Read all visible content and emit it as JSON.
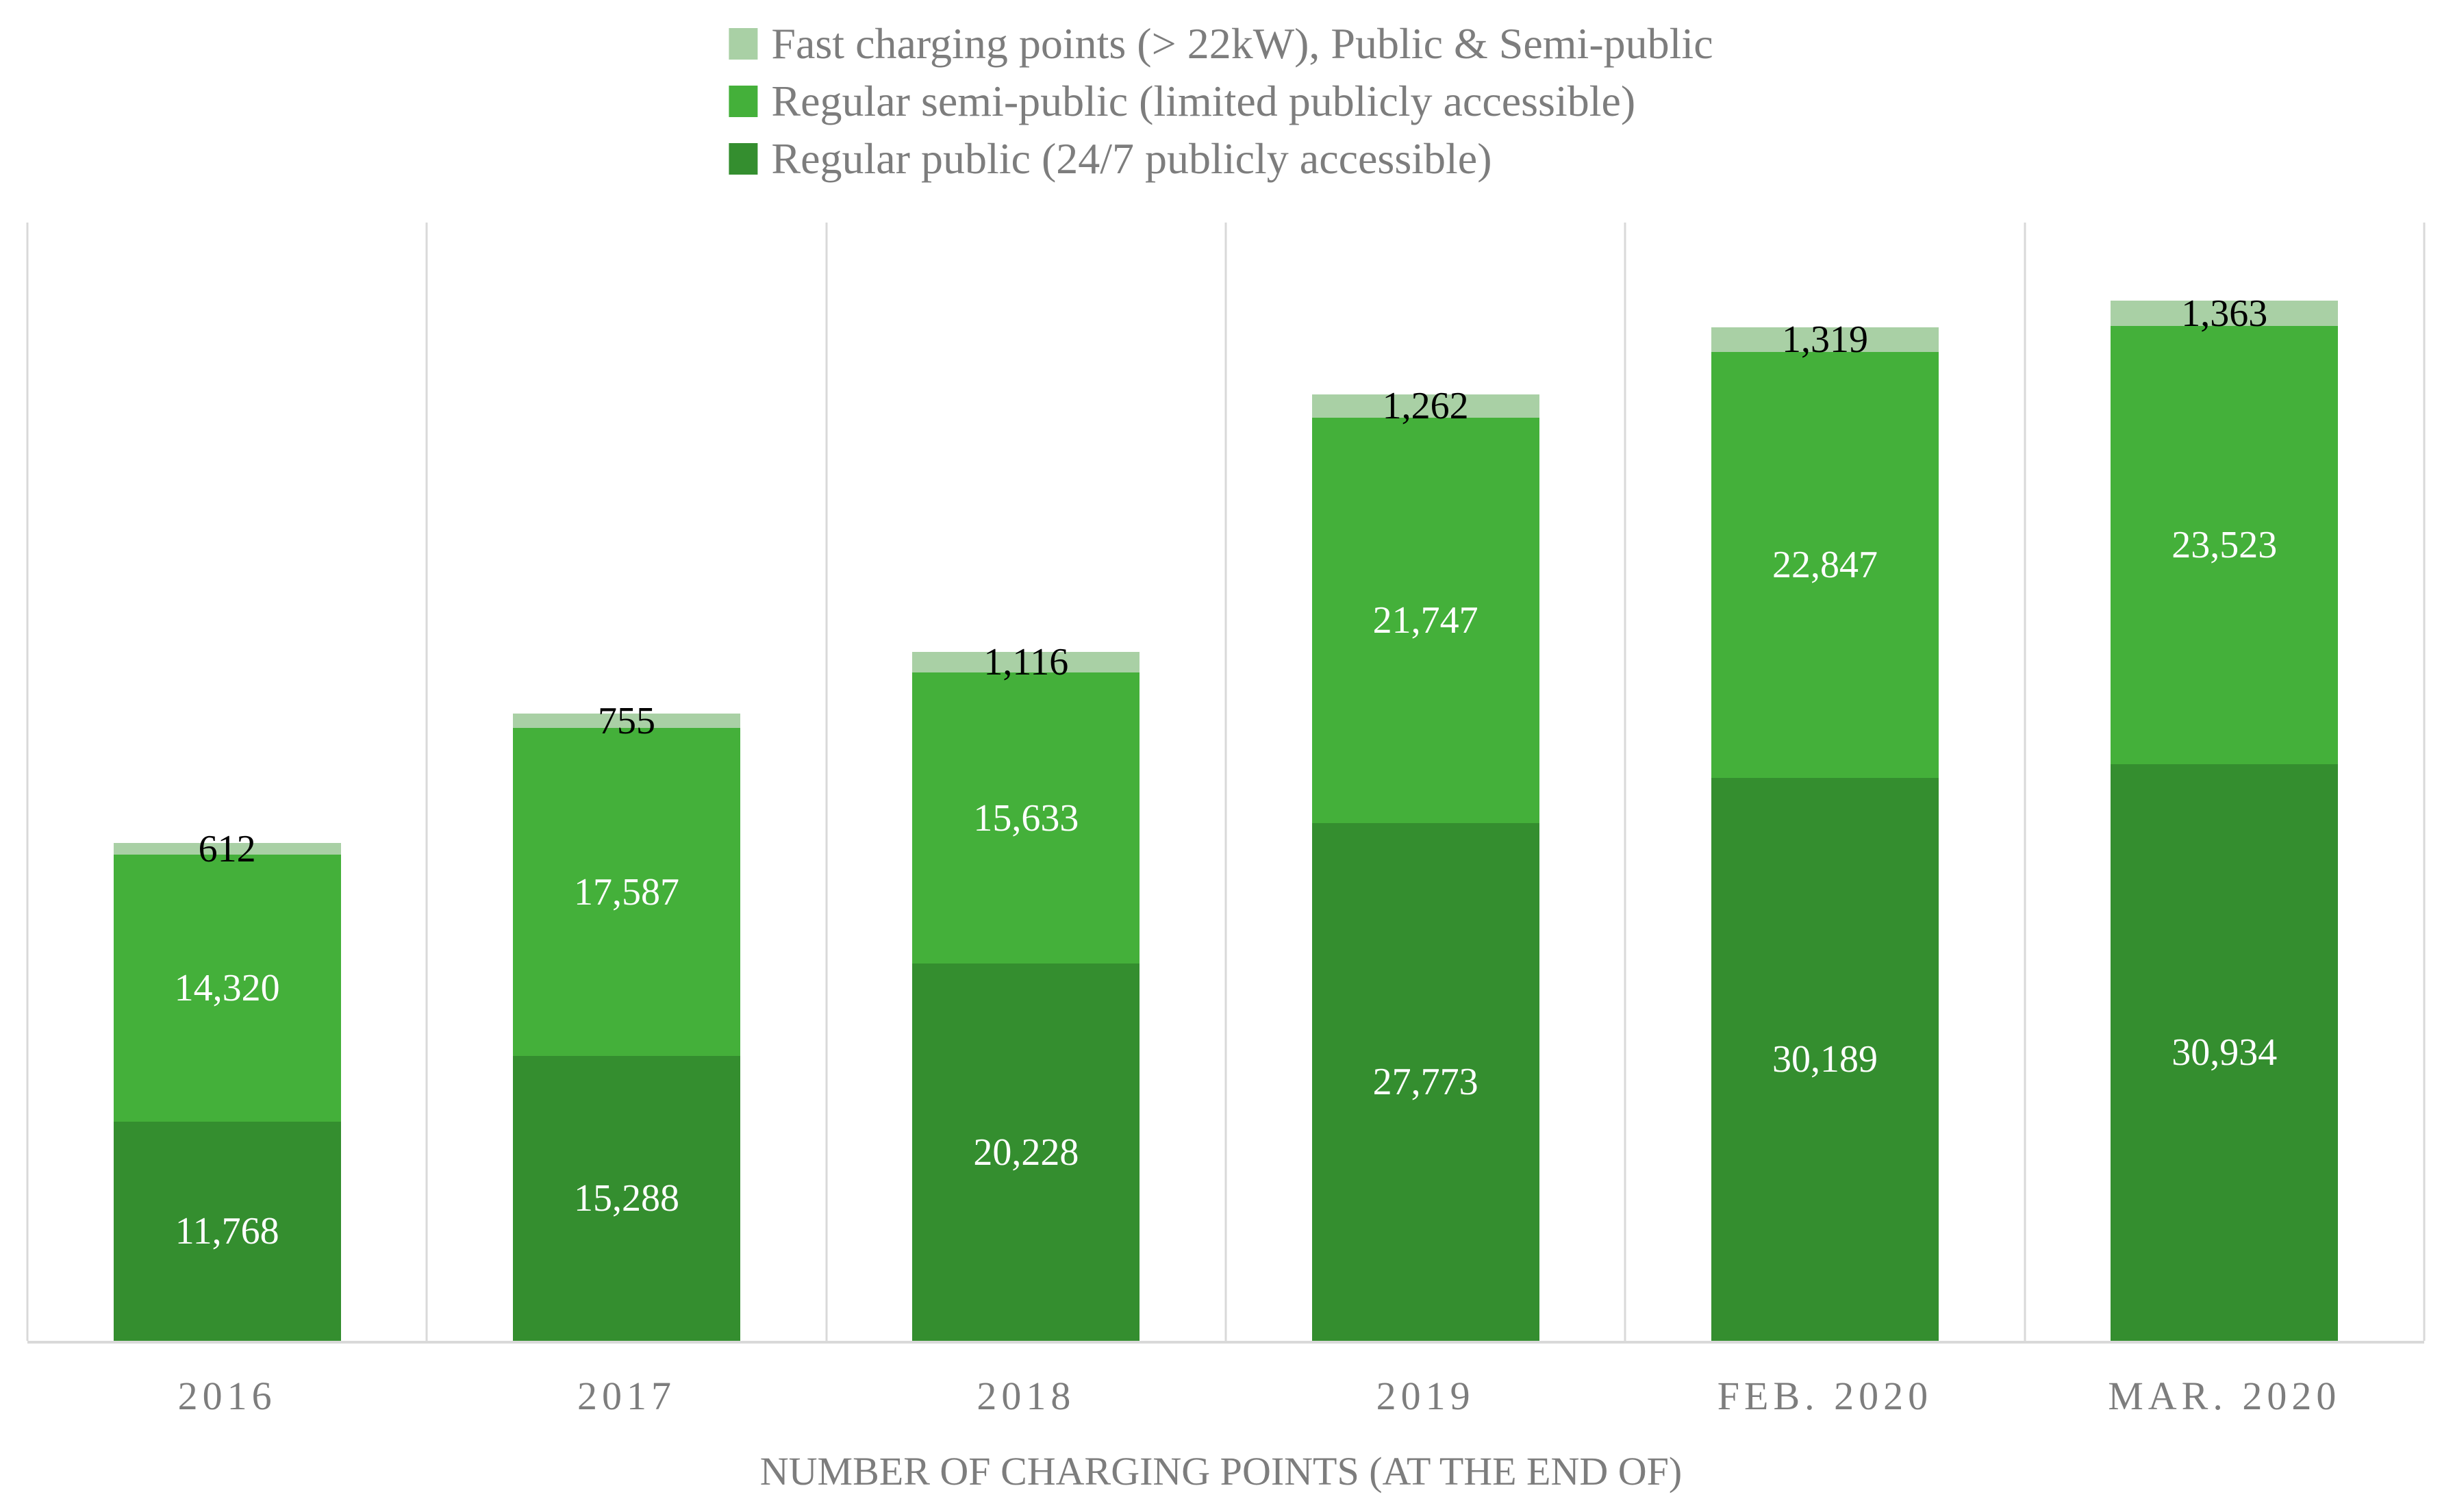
{
  "chart_data": {
    "type": "bar",
    "stacked": true,
    "title": "",
    "xlabel": "NUMBER OF CHARGING POINTS (AT THE END OF)",
    "ylabel": "",
    "categories": [
      "2016",
      "2017",
      "2018",
      "2019",
      "FEB. 2020",
      "MAR. 2020"
    ],
    "series": [
      {
        "name": "Regular public (24/7 publicly accessible)",
        "color": "#348E2F",
        "label_color": "#ffffff",
        "values": [
          11768,
          15288,
          20228,
          27773,
          30189,
          30934
        ],
        "labels": [
          "11,768",
          "15,288",
          "20,228",
          "27,773",
          "30,189",
          "30,934"
        ]
      },
      {
        "name": "Regular semi-public (limited publicly accessible)",
        "color": "#44B03A",
        "label_color": "#ffffff",
        "values": [
          14320,
          17587,
          15633,
          21747,
          22847,
          23523
        ],
        "labels": [
          "14,320",
          "17,587",
          "15,633",
          "21,747",
          "22,847",
          "23,523"
        ]
      },
      {
        "name": "Fast charging points (> 22kW), Public & Semi-public",
        "color": "#A9D0A5",
        "label_color": "#000000",
        "values": [
          612,
          755,
          1116,
          1262,
          1319,
          1363
        ],
        "labels": [
          "612",
          "755",
          "1,116",
          "1,262",
          "1,319",
          "1,363"
        ]
      }
    ],
    "ylim": [
      0,
      60000
    ],
    "legend_position": "top",
    "legend_order_top_to_bottom": [
      "Fast charging points (> 22kW), Public & Semi-public",
      "Regular semi-public (limited publicly accessible)",
      "Regular public (24/7 publicly accessible)"
    ],
    "grid": "vertical category separators only",
    "colors": {
      "gridline": "#d9d9d9",
      "axis_line": "#d9d9d9",
      "axis_text": "#7d7d7d"
    }
  }
}
